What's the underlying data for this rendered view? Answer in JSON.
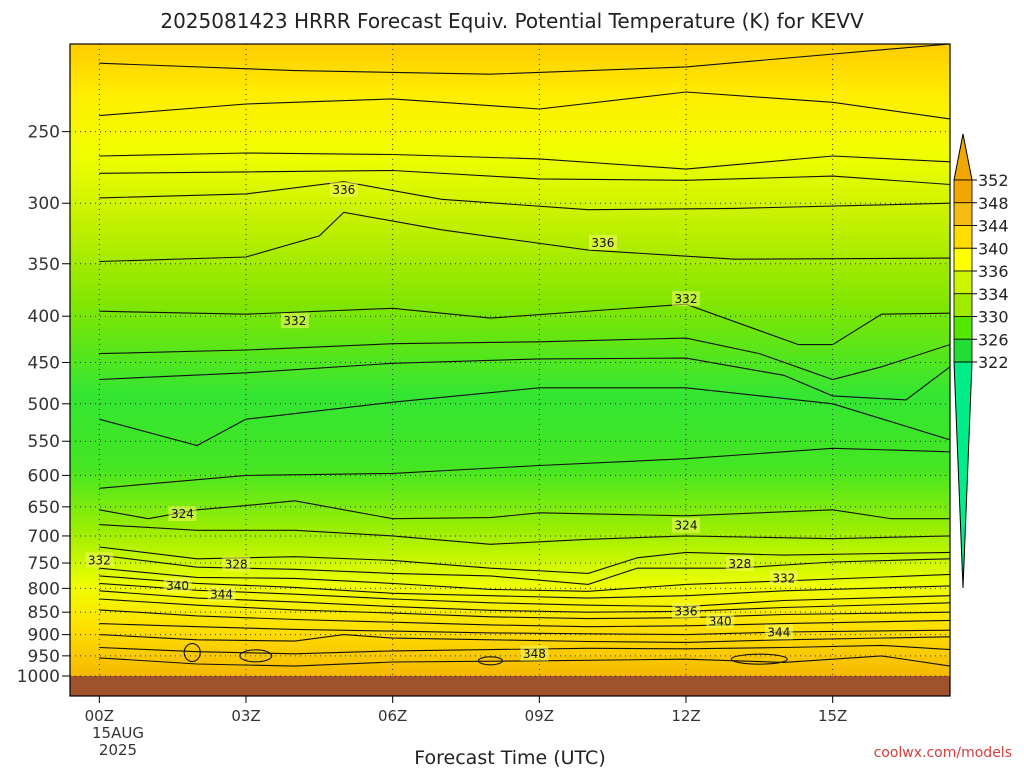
{
  "chart_data": {
    "type": "heatmap",
    "title": "2025081423 HRRR Forecast Equiv. Potential Temperature (K) for KEVV",
    "xlabel": "Forecast Time (UTC)",
    "ylabel": "",
    "x_tick_labels": [
      "00Z",
      "03Z",
      "06Z",
      "09Z",
      "12Z",
      "15Z"
    ],
    "x_tick_hours": [
      0,
      3,
      6,
      9,
      12,
      15
    ],
    "x_date_label": [
      "15AUG",
      "2025"
    ],
    "xlim": [
      -0.6,
      17.4
    ],
    "y_tick_labels": [
      "250",
      "300",
      "350",
      "400",
      "450",
      "500",
      "550",
      "600",
      "650",
      "700",
      "750",
      "800",
      "850",
      "900",
      "950",
      "1000"
    ],
    "ylim": [
      200,
      1000
    ],
    "y_scale": "log (pressure, hPa)",
    "units": "K",
    "colorbar": {
      "labels": [
        "352",
        "348",
        "344",
        "340",
        "336",
        "334",
        "330",
        "326",
        "322"
      ],
      "colors": [
        "#f2a600",
        "#f5bb10",
        "#ffdd00",
        "#ffff00",
        "#ccf500",
        "#a0eb00",
        "#55e600",
        "#22dd33",
        "#00ee88"
      ],
      "extend": "both"
    },
    "contour_labels": [
      {
        "value": "336",
        "hour": 5.0,
        "p": 290
      },
      {
        "value": "336",
        "hour": 10.3,
        "p": 332
      },
      {
        "value": "332",
        "hour": 4.0,
        "p": 405
      },
      {
        "value": "332",
        "hour": 12.0,
        "p": 383
      },
      {
        "value": "324",
        "hour": 1.7,
        "p": 662
      },
      {
        "value": "324",
        "hour": 12.0,
        "p": 682
      },
      {
        "value": "332",
        "hour": 0.0,
        "p": 745
      },
      {
        "value": "328",
        "hour": 2.8,
        "p": 753
      },
      {
        "value": "328",
        "hour": 13.1,
        "p": 752
      },
      {
        "value": "332",
        "hour": 14.0,
        "p": 780
      },
      {
        "value": "340",
        "hour": 1.6,
        "p": 795
      },
      {
        "value": "344",
        "hour": 2.5,
        "p": 813
      },
      {
        "value": "336",
        "hour": 12.0,
        "p": 848
      },
      {
        "value": "340",
        "hour": 12.7,
        "p": 870
      },
      {
        "value": "344",
        "hour": 13.9,
        "p": 895
      },
      {
        "value": "348",
        "hour": 8.9,
        "p": 945
      }
    ],
    "grid": true,
    "legend": "colorbar right"
  },
  "credit": "coolwx.com/models"
}
